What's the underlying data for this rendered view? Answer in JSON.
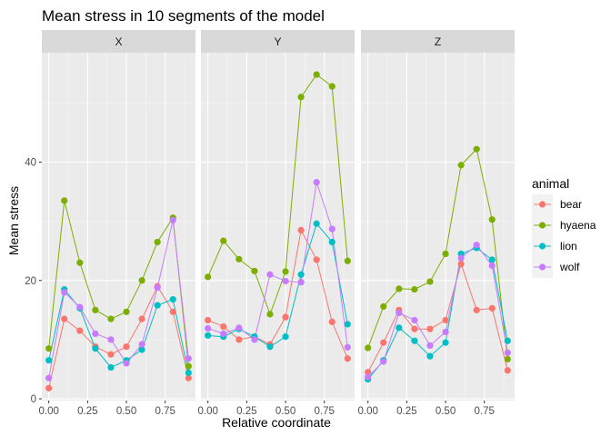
{
  "chart_data": {
    "type": "line",
    "title": "Mean stress in 10 segments of the model",
    "xlabel": "Relative coordinate",
    "ylabel": "Mean stress",
    "x": [
      0.0,
      0.1,
      0.2,
      0.3,
      0.4,
      0.5,
      0.6,
      0.7,
      0.8,
      0.9
    ],
    "xlim": [
      -0.045,
      0.945
    ],
    "ylim": [
      -0.3,
      58.5
    ],
    "x_ticks": [
      0.0,
      0.25,
      0.5,
      0.75
    ],
    "x_tick_labels": [
      "0.00",
      "0.25",
      "0.50",
      "0.75"
    ],
    "y_ticks": [
      0,
      20,
      40
    ],
    "y_tick_labels": [
      "0",
      "20",
      "40"
    ],
    "grid": true,
    "legend": {
      "title": "animal",
      "position": "right"
    },
    "facets": [
      {
        "label": "X",
        "series": [
          {
            "name": "bear",
            "color": "#F8766D",
            "values": [
              1.8,
              13.5,
              11.5,
              8.8,
              7.5,
              8.8,
              13.5,
              19.0,
              14.7,
              3.5
            ]
          },
          {
            "name": "hyaena",
            "color": "#7CAE00",
            "values": [
              8.5,
              33.5,
              23.0,
              15.0,
              13.5,
              14.7,
              20.0,
              26.5,
              30.6,
              5.5
            ]
          },
          {
            "name": "lion",
            "color": "#00BFC4",
            "values": [
              6.5,
              18.5,
              15.3,
              8.5,
              5.3,
              6.5,
              8.3,
              15.8,
              16.8,
              4.4
            ]
          },
          {
            "name": "wolf",
            "color": "#C77CFF",
            "values": [
              3.5,
              18.0,
              15.5,
              11.0,
              10.0,
              6.0,
              9.2,
              18.8,
              30.2,
              6.8
            ]
          }
        ]
      },
      {
        "label": "Y",
        "series": [
          {
            "name": "bear",
            "color": "#F8766D",
            "values": [
              13.3,
              12.2,
              10.0,
              10.5,
              9.2,
              13.8,
              28.5,
              23.5,
              13.0,
              6.8
            ]
          },
          {
            "name": "hyaena",
            "color": "#7CAE00",
            "values": [
              20.6,
              26.7,
              23.6,
              21.6,
              14.3,
              21.5,
              51.0,
              54.8,
              52.8,
              23.3
            ]
          },
          {
            "name": "lion",
            "color": "#00BFC4",
            "values": [
              10.7,
              10.5,
              11.8,
              10.5,
              8.8,
              10.5,
              21.0,
              29.6,
              26.5,
              12.6
            ]
          },
          {
            "name": "wolf",
            "color": "#C77CFF",
            "values": [
              11.9,
              11.0,
              12.0,
              10.0,
              21.0,
              19.9,
              19.7,
              36.6,
              28.7,
              8.7
            ]
          }
        ]
      },
      {
        "label": "Z",
        "series": [
          {
            "name": "bear",
            "color": "#F8766D",
            "values": [
              4.5,
              9.5,
              15.0,
              11.8,
              11.8,
              13.3,
              22.8,
              15.0,
              15.3,
              4.8
            ]
          },
          {
            "name": "hyaena",
            "color": "#7CAE00",
            "values": [
              8.6,
              15.6,
              18.6,
              18.5,
              19.8,
              24.5,
              39.5,
              42.2,
              30.3,
              6.7
            ]
          },
          {
            "name": "lion",
            "color": "#00BFC4",
            "values": [
              3.3,
              6.5,
              12.0,
              9.8,
              7.2,
              9.5,
              24.5,
              25.5,
              23.5,
              9.8
            ]
          },
          {
            "name": "wolf",
            "color": "#C77CFF",
            "values": [
              3.7,
              6.3,
              14.5,
              13.3,
              9.0,
              11.3,
              23.8,
              26.0,
              22.5,
              7.8
            ]
          }
        ]
      }
    ]
  }
}
